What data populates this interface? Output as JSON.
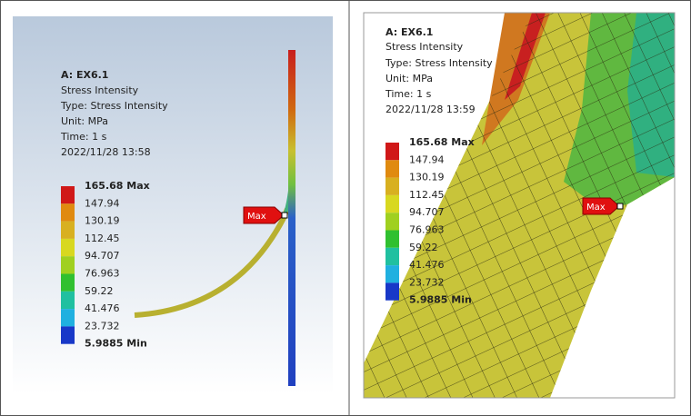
{
  "panels": [
    {
      "title": "A: EX6.1",
      "lines": [
        "Stress Intensity",
        "Type: Stress Intensity",
        "Unit: MPa",
        "Time: 1 s",
        "2022/11/28 13:58"
      ],
      "legend": [
        "165.68 Max",
        "147.94",
        "130.19",
        "112.45",
        "94.707",
        "76.963",
        "59.22",
        "41.476",
        "23.732",
        "5.9885 Min"
      ],
      "marker": "Max"
    },
    {
      "title": "A: EX6.1",
      "lines": [
        "Stress Intensity",
        "Type: Stress Intensity",
        "Unit: MPa",
        "Time: 1 s",
        "2022/11/28 13:59"
      ],
      "legend": [
        "165.68 Max",
        "147.94",
        "130.19",
        "112.45",
        "94.707",
        "76.963",
        "59.22",
        "41.476",
        "23.732",
        "5.9885 Min"
      ],
      "marker": "Max"
    }
  ]
}
